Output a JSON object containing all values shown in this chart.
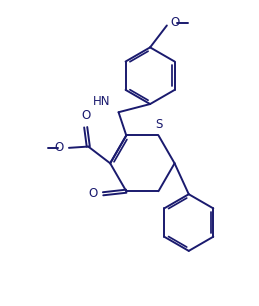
{
  "background": "#ffffff",
  "line_color": "#1a1a6e",
  "line_width": 1.4,
  "font_size": 8.5,
  "figsize": [
    2.59,
    3.06
  ],
  "dpi": 100,
  "xlim": [
    0,
    10
  ],
  "ylim": [
    0,
    11.8
  ]
}
